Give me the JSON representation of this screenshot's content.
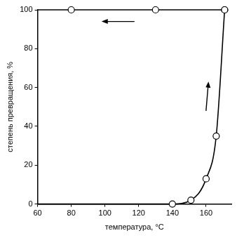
{
  "chart_data": {
    "type": "line",
    "x_label": "температура, °C",
    "y_label": "степень превращения, %",
    "series": [
      {
        "x": [
          60,
          140,
          151,
          160,
          166,
          171
        ],
        "values": [
          0,
          0,
          2,
          13,
          35,
          100
        ],
        "color": "#000000",
        "marker": "circle"
      },
      {
        "x": [
          171,
          130,
          80,
          60
        ],
        "values": [
          100,
          100,
          100,
          100
        ],
        "color": "#000000",
        "marker": "circle"
      }
    ],
    "xlim": [
      60,
      175
    ],
    "xticks": [
      60,
      80,
      100,
      120,
      140,
      160
    ],
    "ylim": [
      0,
      100
    ],
    "yticks": [
      0,
      20,
      40,
      60,
      80,
      100
    ],
    "grid": false
  }
}
